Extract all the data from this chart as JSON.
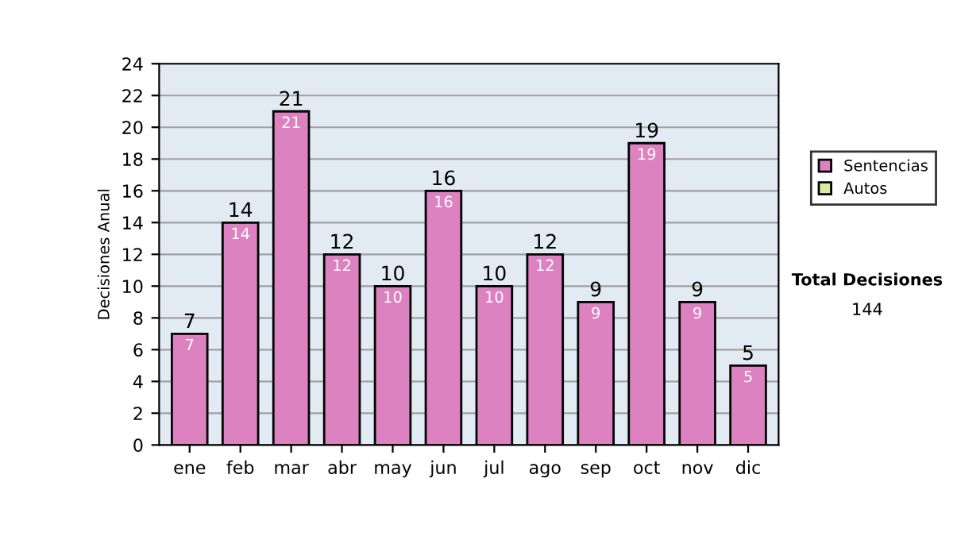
{
  "chart_data": {
    "type": "bar",
    "stacked": true,
    "ylabel": "Decisiones Anual",
    "categories": [
      "ene",
      "feb",
      "mar",
      "abr",
      "may",
      "jun",
      "jul",
      "ago",
      "sep",
      "oct",
      "nov",
      "dic"
    ],
    "series": [
      {
        "name": "Sentencias",
        "color": "#dc82c0",
        "values": [
          7,
          14,
          21,
          12,
          10,
          16,
          10,
          12,
          9,
          19,
          9,
          5
        ],
        "value_labels": [
          "7",
          "14",
          "21",
          "12",
          "10",
          "16",
          "10",
          "12",
          "9",
          "19",
          "9",
          "5"
        ]
      },
      {
        "name": "Autos",
        "color": "#d8eca0",
        "values": [
          null,
          null,
          null,
          null,
          null,
          null,
          null,
          null,
          null,
          null,
          null,
          null
        ]
      }
    ],
    "totals": [
      "7",
      "14",
      "21",
      "12",
      "10",
      "16",
      "10",
      "12",
      "9",
      "19",
      "9",
      "5"
    ],
    "ylim": [
      0,
      24
    ],
    "yticks": [
      0,
      2,
      4,
      6,
      8,
      10,
      12,
      14,
      16,
      18,
      20,
      22,
      24
    ],
    "grid": "y",
    "legend": "right",
    "annotations": [
      "Total Decisiones",
      "144"
    ]
  }
}
